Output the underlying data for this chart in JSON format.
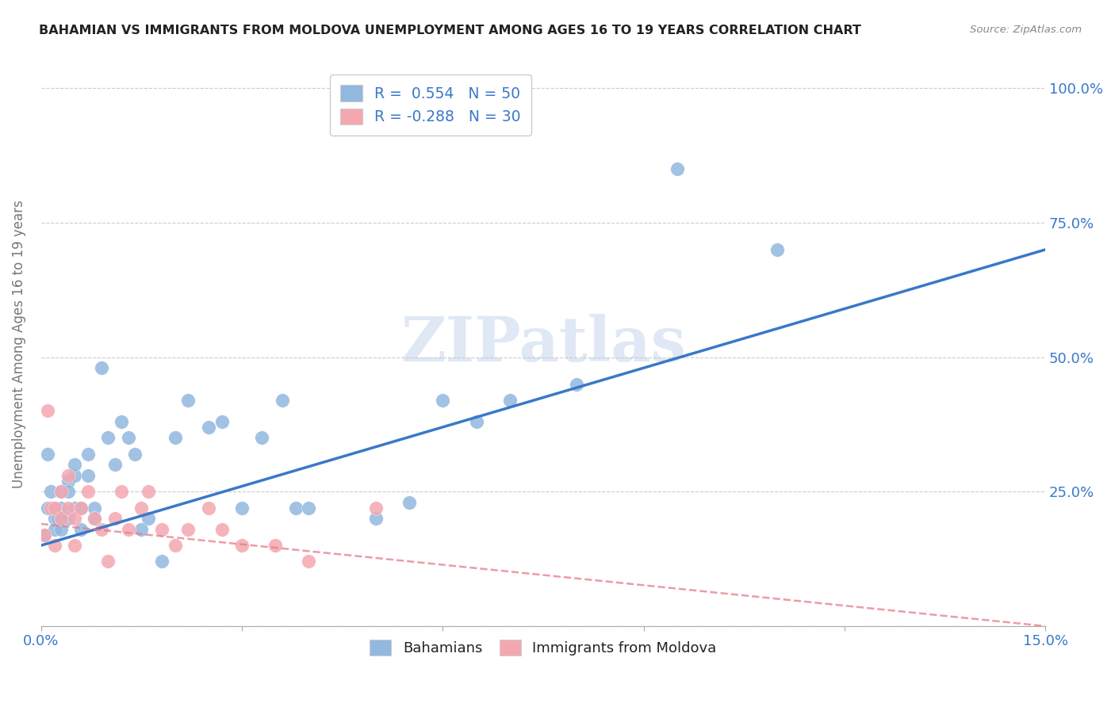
{
  "title": "BAHAMIAN VS IMMIGRANTS FROM MOLDOVA UNEMPLOYMENT AMONG AGES 16 TO 19 YEARS CORRELATION CHART",
  "source": "Source: ZipAtlas.com",
  "ylabel": "Unemployment Among Ages 16 to 19 years",
  "xlabel": "",
  "xlim": [
    0.0,
    0.15
  ],
  "ylim": [
    0.0,
    1.05
  ],
  "x_ticks": [
    0.0,
    0.03,
    0.06,
    0.09,
    0.12,
    0.15
  ],
  "x_tick_labels": [
    "0.0%",
    "",
    "",
    "",
    "",
    "15.0%"
  ],
  "y_ticks": [
    0.0,
    0.25,
    0.5,
    0.75,
    1.0
  ],
  "y_tick_labels": [
    "",
    "25.0%",
    "50.0%",
    "75.0%",
    "100.0%"
  ],
  "bahamians_R": 0.554,
  "bahamians_N": 50,
  "moldova_R": -0.288,
  "moldova_N": 30,
  "blue_color": "#92b8e0",
  "blue_line_color": "#3a78c9",
  "pink_color": "#f4a7b0",
  "pink_line_color": "#e87a8a",
  "watermark_text": "ZIPatlas",
  "legend_label_blue": "Bahamians",
  "legend_label_pink": "Immigrants from Moldova",
  "blue_line_x0": 0.0,
  "blue_line_y0": 0.15,
  "blue_line_x1": 0.15,
  "blue_line_y1": 0.7,
  "pink_line_x0": 0.0,
  "pink_line_y0": 0.19,
  "pink_line_x1": 0.15,
  "pink_line_y1": 0.0,
  "bahamians_x": [
    0.0005,
    0.001,
    0.001,
    0.0015,
    0.002,
    0.002,
    0.002,
    0.0025,
    0.003,
    0.003,
    0.003,
    0.003,
    0.004,
    0.004,
    0.004,
    0.005,
    0.005,
    0.005,
    0.006,
    0.006,
    0.007,
    0.007,
    0.008,
    0.008,
    0.009,
    0.01,
    0.011,
    0.012,
    0.013,
    0.014,
    0.015,
    0.016,
    0.018,
    0.02,
    0.022,
    0.025,
    0.027,
    0.03,
    0.033,
    0.036,
    0.038,
    0.04,
    0.05,
    0.055,
    0.06,
    0.065,
    0.07,
    0.08,
    0.095,
    0.11
  ],
  "bahamians_y": [
    0.17,
    0.22,
    0.32,
    0.25,
    0.2,
    0.18,
    0.22,
    0.2,
    0.2,
    0.18,
    0.22,
    0.25,
    0.27,
    0.2,
    0.25,
    0.28,
    0.22,
    0.3,
    0.22,
    0.18,
    0.32,
    0.28,
    0.22,
    0.2,
    0.48,
    0.35,
    0.3,
    0.38,
    0.35,
    0.32,
    0.18,
    0.2,
    0.12,
    0.35,
    0.42,
    0.37,
    0.38,
    0.22,
    0.35,
    0.42,
    0.22,
    0.22,
    0.2,
    0.23,
    0.42,
    0.38,
    0.42,
    0.45,
    0.85,
    0.7
  ],
  "moldova_x": [
    0.0005,
    0.001,
    0.0015,
    0.002,
    0.002,
    0.003,
    0.003,
    0.004,
    0.004,
    0.005,
    0.005,
    0.006,
    0.007,
    0.008,
    0.009,
    0.01,
    0.011,
    0.012,
    0.013,
    0.015,
    0.016,
    0.018,
    0.02,
    0.022,
    0.025,
    0.027,
    0.03,
    0.035,
    0.04,
    0.05
  ],
  "moldova_y": [
    0.17,
    0.4,
    0.22,
    0.22,
    0.15,
    0.25,
    0.2,
    0.22,
    0.28,
    0.15,
    0.2,
    0.22,
    0.25,
    0.2,
    0.18,
    0.12,
    0.2,
    0.25,
    0.18,
    0.22,
    0.25,
    0.18,
    0.15,
    0.18,
    0.22,
    0.18,
    0.15,
    0.15,
    0.12,
    0.22
  ]
}
